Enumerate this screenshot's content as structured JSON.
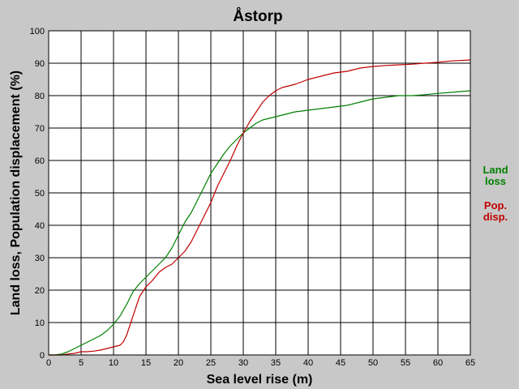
{
  "chart_data": {
    "type": "line",
    "title": "Åstorp",
    "xlabel": "Sea level rise (m)",
    "ylabel": "Land loss, Population displacement (%)",
    "xlim": [
      0,
      65
    ],
    "ylim": [
      0,
      100
    ],
    "xticks": [
      "0",
      "5",
      "10",
      "15",
      "20",
      "25",
      "30",
      "35",
      "40",
      "45",
      "50",
      "55",
      "60",
      "65"
    ],
    "yticks": [
      "0",
      "10",
      "20",
      "30",
      "40",
      "50",
      "60",
      "70",
      "80",
      "90",
      "100"
    ],
    "grid": true,
    "legend_position": "right",
    "series": [
      {
        "name_lines": [
          "Land",
          "loss"
        ],
        "color": "#008000",
        "x": [
          0,
          1,
          2,
          3,
          4,
          5,
          6,
          7,
          8,
          9,
          10,
          11,
          12,
          13,
          14,
          15,
          16,
          17,
          18,
          19,
          20,
          21,
          22,
          23,
          24,
          25,
          26,
          27,
          28,
          29,
          30,
          31,
          32,
          33,
          34,
          35,
          36,
          37,
          38,
          40,
          42,
          44,
          46,
          48,
          50,
          52,
          54,
          56,
          58,
          60,
          62,
          65
        ],
        "y": [
          0,
          0,
          0.3,
          1,
          2,
          3,
          4,
          5,
          6,
          7.5,
          9.5,
          12,
          15.5,
          19.5,
          22,
          24,
          26,
          28,
          30,
          33,
          37,
          41,
          44,
          48,
          52,
          56,
          59,
          62,
          64.5,
          66.5,
          68.5,
          70,
          71.5,
          72.5,
          73,
          73.5,
          74,
          74.5,
          75,
          75.5,
          76,
          76.5,
          77,
          78,
          79,
          79.5,
          80,
          80,
          80.3,
          80.7,
          81,
          81.5
        ]
      },
      {
        "name_lines": [
          "Pop.",
          "disp."
        ],
        "color": "#c00000",
        "x": [
          0,
          2,
          3,
          4,
          5,
          6,
          7,
          8,
          9,
          10,
          11,
          11.5,
          12,
          12.5,
          13,
          13.5,
          14,
          15,
          16,
          17,
          18,
          19,
          20,
          21,
          22,
          23,
          24,
          25,
          26,
          27,
          28,
          29,
          30,
          31,
          32,
          33,
          34,
          35,
          36,
          37,
          38,
          40,
          42,
          44,
          46,
          48,
          50,
          52,
          54,
          56,
          58,
          60,
          62,
          65
        ],
        "y": [
          0,
          0,
          0.3,
          0.5,
          1,
          1,
          1.2,
          1.5,
          2,
          2.5,
          3,
          4,
          6,
          9,
          12,
          15,
          18,
          21,
          23,
          25.5,
          27,
          28,
          30,
          32,
          35,
          39,
          43,
          47,
          52,
          56,
          60,
          64.5,
          68.5,
          72,
          75,
          78,
          80,
          81.5,
          82.5,
          83,
          83.5,
          85,
          86,
          87,
          87.5,
          88.5,
          89,
          89.3,
          89.5,
          89.7,
          90,
          90.3,
          90.7,
          91
        ]
      }
    ]
  }
}
